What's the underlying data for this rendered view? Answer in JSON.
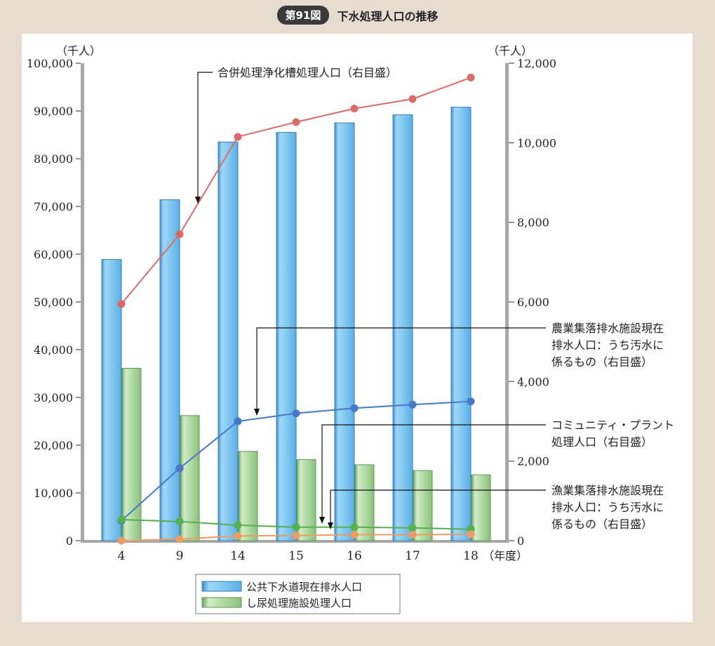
{
  "header": {
    "badge": "第91図",
    "title": "下水処理人口の推移"
  },
  "chart_data": {
    "type": "bar",
    "categories": [
      "4",
      "9",
      "14",
      "15",
      "16",
      "17",
      "18"
    ],
    "left_axis": {
      "unit": "（千人）",
      "ylim": [
        0,
        100000
      ],
      "ticks": [
        "0",
        "10,000",
        "20,000",
        "30,000",
        "40,000",
        "50,000",
        "60,000",
        "70,000",
        "80,000",
        "90,000",
        "100,000"
      ]
    },
    "right_axis": {
      "unit": "（千人）",
      "ylim": [
        0,
        12000
      ],
      "ticks": [
        "0",
        "2,000",
        "4,000",
        "6,000",
        "8,000",
        "10,000",
        "12,000"
      ]
    },
    "x_unit": "（年度）",
    "bar_series": [
      {
        "name": "公共下水道現在排水人口",
        "values": [
          58900,
          71400,
          83500,
          85500,
          87500,
          89200,
          90800
        ],
        "color": "#7ec4ef"
      },
      {
        "name": "し尿処理施設処理人口",
        "values": [
          36100,
          26200,
          18700,
          17000,
          15900,
          14700,
          13800
        ],
        "color": "#a9d49a"
      }
    ],
    "line_series": [
      {
        "name": "合併処理浄化槽処理人口（右目盛）",
        "values": [
          5950,
          7700,
          10150,
          10520,
          10860,
          11100,
          11640
        ],
        "color": "#dc6a6a"
      },
      {
        "name": "農業集落排水施設現在排水人口：うち汚水に係るもの（右目盛）",
        "values": [
          500,
          1820,
          3000,
          3200,
          3330,
          3420,
          3500
        ],
        "color": "#4679c8"
      },
      {
        "name": "コミュニティ・プラント処理人口（右目盛）",
        "values": [
          530,
          480,
          390,
          340,
          340,
          320,
          290
        ],
        "color": "#55b050"
      },
      {
        "name": "漁業集落排水施設現在排水人口：うち汚水に係るもの（右目盛）",
        "values": [
          0,
          40,
          120,
          130,
          150,
          150,
          160
        ],
        "color": "#ee9d62"
      }
    ],
    "annotations": {
      "gappei": "合併処理浄化槽処理人口（右目盛）",
      "nougyou": [
        "農業集落排水施設現在",
        "排水人口：うち汚水に",
        "係るもの（右目盛）"
      ],
      "community": [
        "コミュニティ・プラント",
        "処理人口（右目盛）"
      ],
      "gyogyou": [
        "漁業集落排水施設現在",
        "排水人口：うち汚水に",
        "係るもの（右目盛）"
      ]
    },
    "legend": "bottom-center",
    "grid": false
  }
}
